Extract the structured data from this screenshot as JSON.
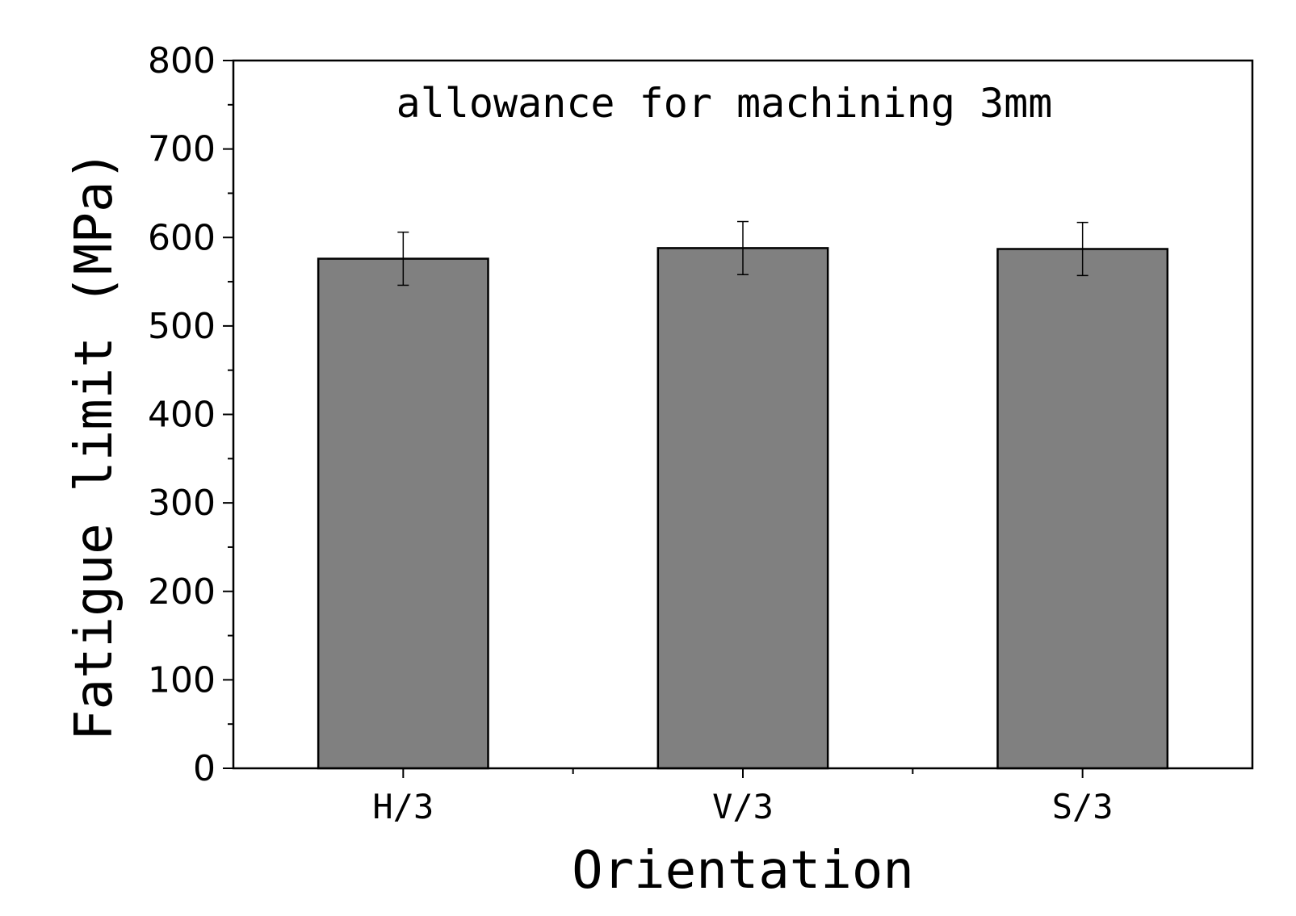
{
  "chart_data": {
    "type": "bar",
    "title": "",
    "annotation": "allowance for machining 3mm",
    "xlabel": "Orientation",
    "ylabel": "Fatigue limit (MPa)",
    "categories": [
      "H/3",
      "V/3",
      "S/3"
    ],
    "values": [
      576,
      588,
      587
    ],
    "errors": [
      30,
      30,
      30
    ],
    "ylim": [
      0,
      800
    ],
    "yticks": [
      0,
      100,
      200,
      300,
      400,
      500,
      600,
      700,
      800
    ],
    "ytick_labels": [
      "0",
      "100",
      "200",
      "300",
      "400",
      "500",
      "600",
      "700",
      "800"
    ],
    "grid": false,
    "bar_color": "#808080",
    "edge_color": "#000000"
  }
}
